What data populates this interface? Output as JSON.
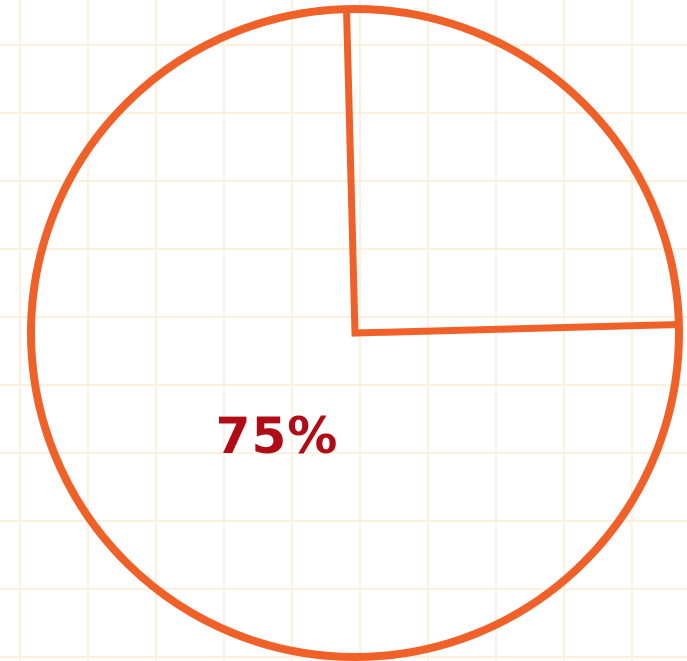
{
  "chart_data": {
    "type": "pie",
    "slices": [
      {
        "label": "75%",
        "value": 75,
        "labeled": true
      },
      {
        "label": "",
        "value": 25,
        "labeled": false
      }
    ],
    "title": "",
    "legend": "none",
    "grid": true
  },
  "colors": {
    "outline": "#f0612a",
    "label": "#b00c16",
    "grid": "#fdf0dc",
    "background": "#ffffff"
  }
}
